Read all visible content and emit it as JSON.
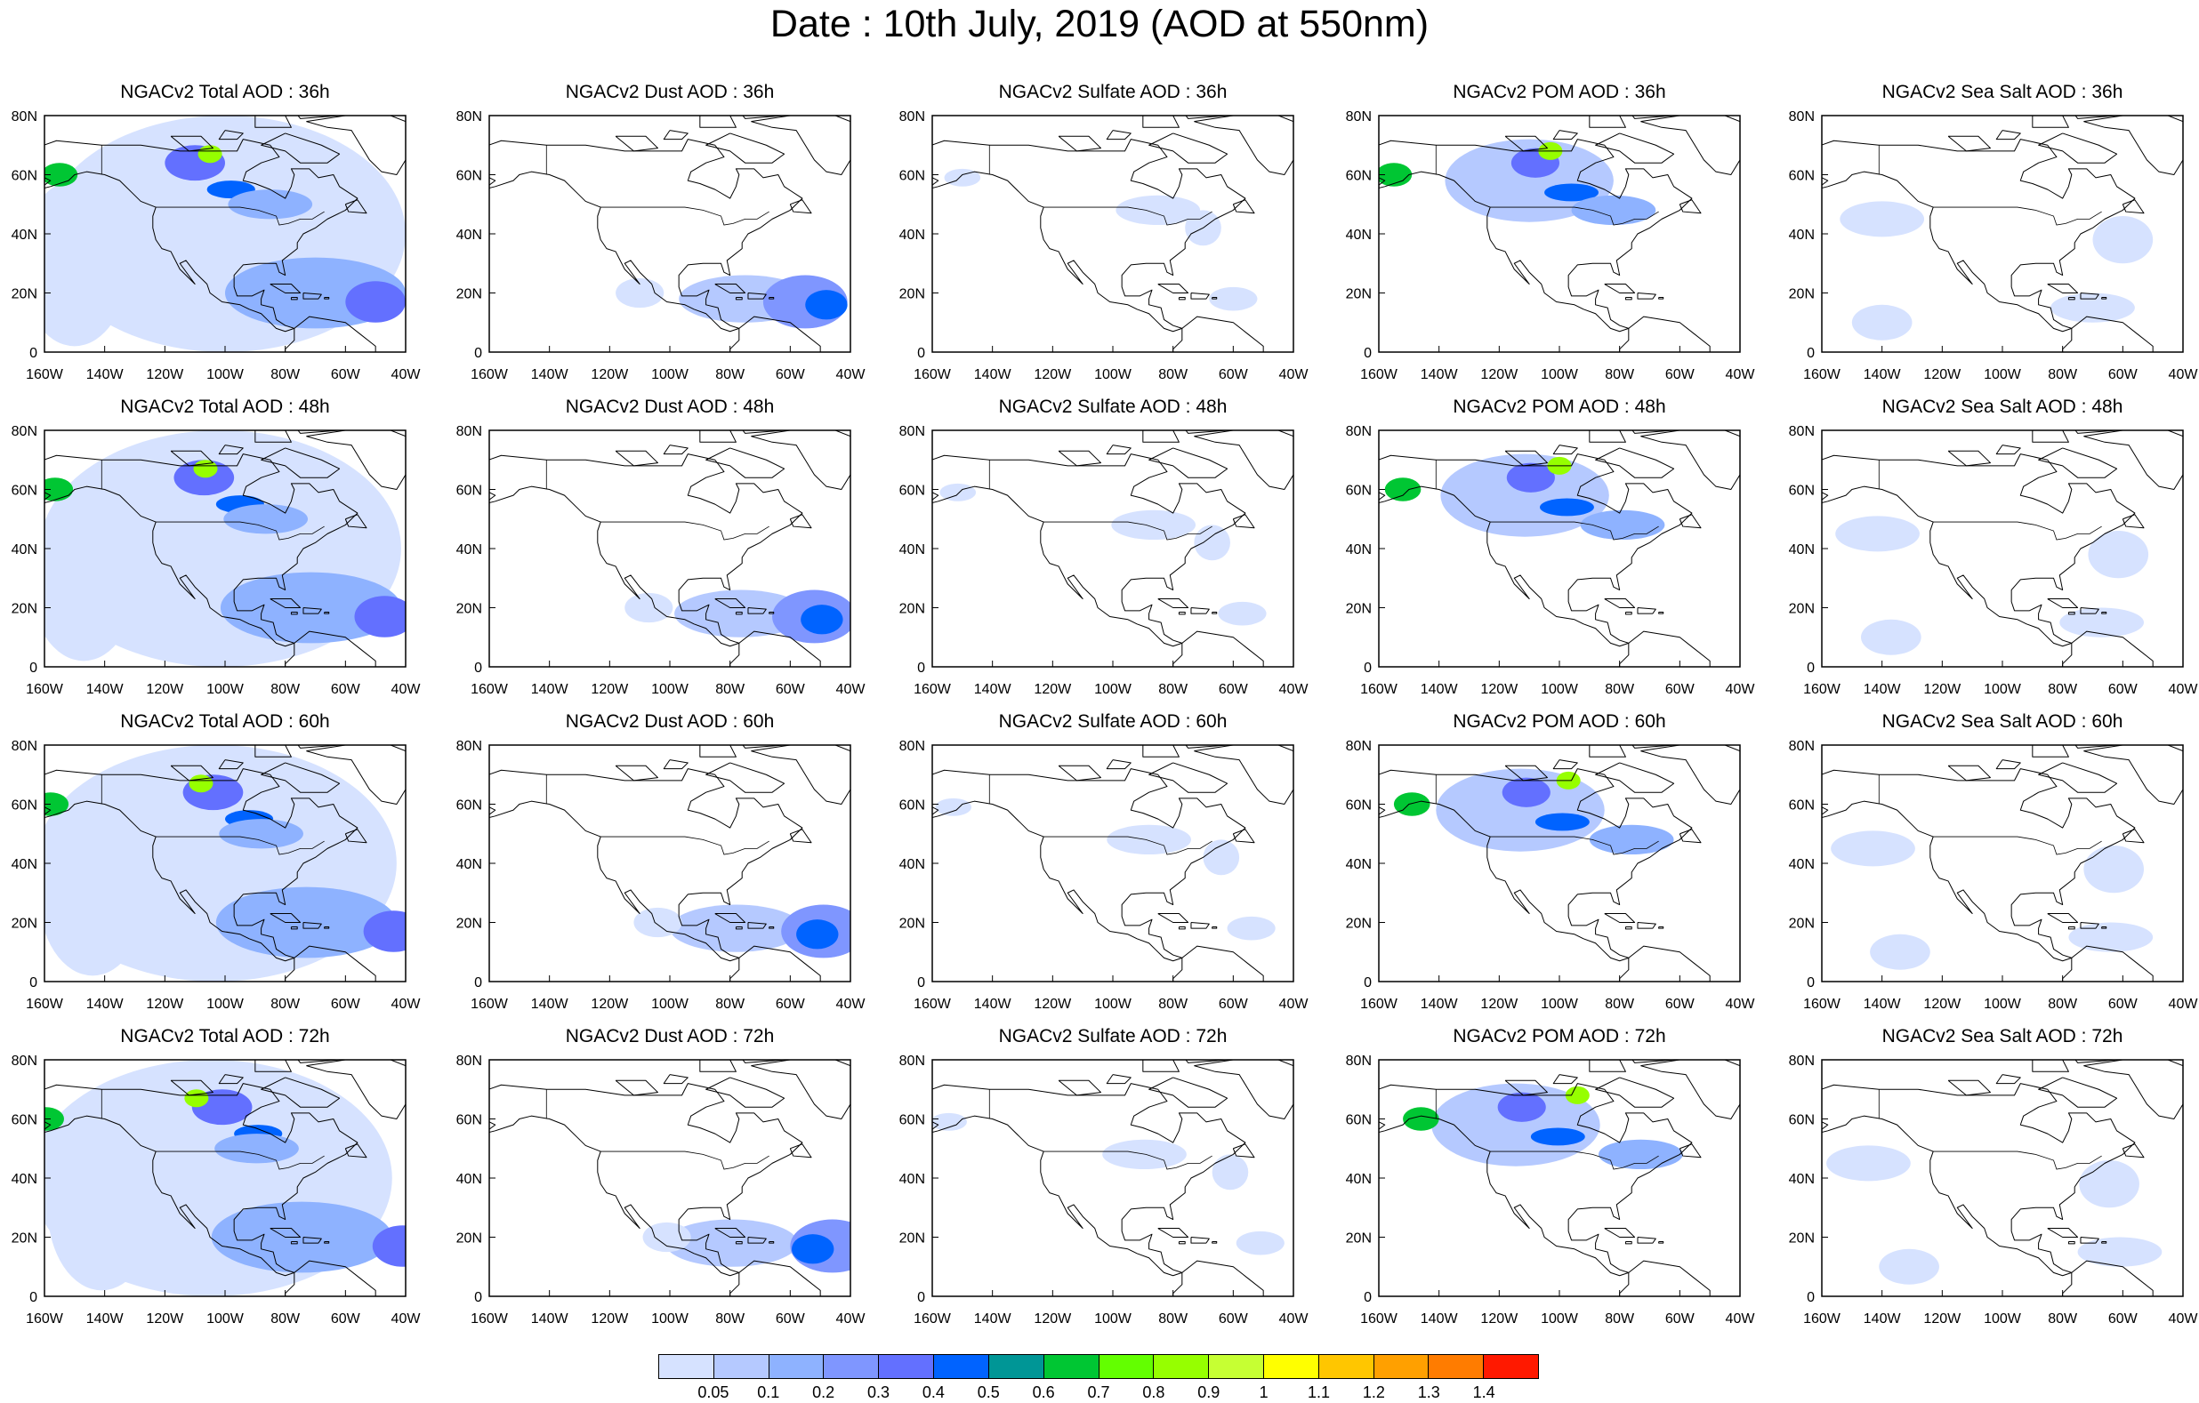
{
  "title": "Date : 10th July, 2019 (AOD at 550nm)",
  "species": [
    {
      "key": "total",
      "label": "NGACv2 Total AOD"
    },
    {
      "key": "dust",
      "label": "NGACv2 Dust AOD"
    },
    {
      "key": "sulfate",
      "label": "NGACv2 Sulfate AOD"
    },
    {
      "key": "pom",
      "label": "NGACv2 POM AOD"
    },
    {
      "key": "seasalt",
      "label": "NGACv2 Sea Salt AOD"
    }
  ],
  "forecast_hours": [
    "36h",
    "48h",
    "60h",
    "72h"
  ],
  "panel_titles": [
    [
      "NGACv2 Total AOD : 36h",
      "NGACv2 Dust AOD : 36h",
      "NGACv2 Sulfate AOD : 36h",
      "NGACv2 POM AOD : 36h",
      "NGACv2 Sea Salt AOD : 36h"
    ],
    [
      "NGACv2 Total AOD : 48h",
      "NGACv2 Dust AOD : 48h",
      "NGACv2 Sulfate AOD : 48h",
      "NGACv2 POM AOD : 48h",
      "NGACv2 Sea Salt AOD : 48h"
    ],
    [
      "NGACv2 Total AOD : 60h",
      "NGACv2 Dust AOD : 60h",
      "NGACv2 Sulfate AOD : 60h",
      "NGACv2 POM AOD : 60h",
      "NGACv2 Sea Salt AOD : 60h"
    ],
    [
      "NGACv2 Total AOD : 72h",
      "NGACv2 Dust AOD : 72h",
      "NGACv2 Sulfate AOD : 72h",
      "NGACv2 POM AOD : 72h",
      "NGACv2 Sea Salt  AOD : 72h"
    ]
  ],
  "lon_ticks": [
    "160W",
    "140W",
    "120W",
    "100W",
    "80W",
    "60W",
    "40W"
  ],
  "lat_ticks": [
    "0",
    "20N",
    "40N",
    "60N",
    "80N"
  ],
  "colorbar": {
    "labels": [
      "0.05",
      "0.1",
      "0.2",
      "0.3",
      "0.4",
      "0.5",
      "0.6",
      "0.7",
      "0.8",
      "0.9",
      "1",
      "1.1",
      "1.2",
      "1.3",
      "1.4"
    ],
    "colors": [
      "#ffffff",
      "#d6e2ff",
      "#b5c9ff",
      "#8eb2ff",
      "#7f96ff",
      "#6370ff",
      "#0063ff",
      "#009696",
      "#00c633",
      "#63ff00",
      "#96ff00",
      "#c6ff33",
      "#ffff00",
      "#ffc600",
      "#ffa000",
      "#ff7c00",
      "#ff1900"
    ]
  },
  "map_extent": {
    "lon_min": -160,
    "lon_max": -40,
    "lat_min": 0,
    "lat_max": 80
  }
}
